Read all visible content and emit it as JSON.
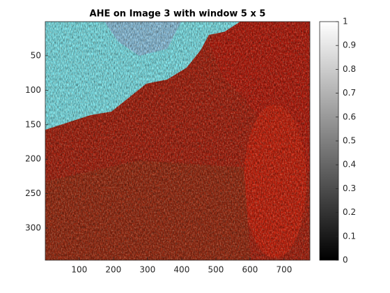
{
  "chart_data": {
    "type": "image",
    "title": "AHE on Image 3 with window 5 x 5",
    "xlim": [
      0.5,
      775.5
    ],
    "xticks": [
      100,
      200,
      300,
      400,
      500,
      600,
      700
    ],
    "ylim": [
      0.5,
      346.5
    ],
    "yticks": [
      50,
      100,
      150,
      200,
      250,
      300
    ],
    "y_reversed": true,
    "colorbar": {
      "ylim": [
        0,
        1
      ],
      "yticks": [
        0,
        0.1,
        0.2,
        0.3,
        0.4,
        0.5,
        0.6,
        0.7,
        0.8,
        0.9,
        1
      ]
    }
  }
}
